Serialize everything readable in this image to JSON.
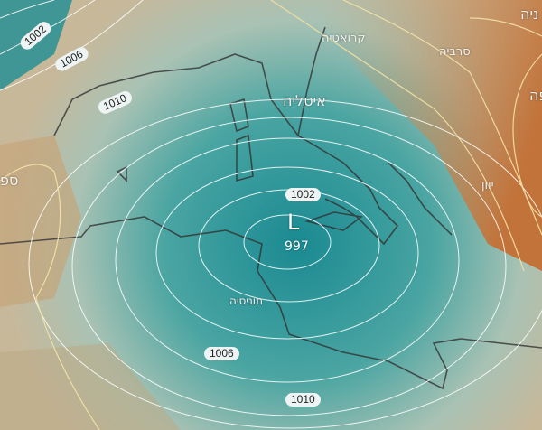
{
  "map": {
    "low_pressure": {
      "symbol": "L",
      "value": "997"
    },
    "isobar_labels": [
      "1002",
      "1006",
      "1010",
      "1002",
      "1006",
      "1010"
    ],
    "country_labels": {
      "croatia": "קרואטיה",
      "serbia": "סרביה",
      "italy": "איטליה",
      "greece": "יוון",
      "tunisia": "תוניסיה",
      "spain_partial": "ספ",
      "top_right_partial": "ניה",
      "right_partial": "פה"
    },
    "colors": {
      "sea_low": "#1f8f96",
      "land_high": "#c87a3e",
      "isobar": "#ffffff",
      "isobar_warm": "#f3e2a8"
    }
  }
}
